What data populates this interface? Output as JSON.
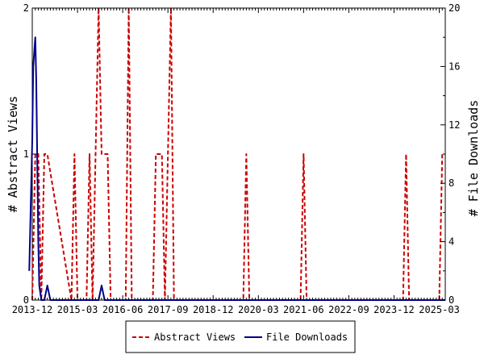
{
  "chart_data": {
    "type": "line",
    "x_tick_labels": [
      "2013-12",
      "2015-03",
      "2016-06",
      "2017-09",
      "2018-12",
      "2020-03",
      "2021-06",
      "2022-09",
      "2023-12",
      "2025-03"
    ],
    "x_range": [
      "2013-12",
      "2025-05"
    ],
    "left_axis": {
      "label": "# Abstract Views",
      "ylim": [
        0,
        2
      ],
      "ticks": [
        "0",
        "1",
        "2"
      ]
    },
    "right_axis": {
      "label": "# File Downloads",
      "ylim": [
        0,
        20
      ],
      "ticks": [
        "0",
        "4",
        "8",
        "12",
        "16",
        "20"
      ]
    },
    "grid": false,
    "legend_placement": "bottom-center",
    "series": [
      {
        "name": "Abstract Views",
        "axis": "left",
        "style": "dashed",
        "color": "#cc0000",
        "x": [
          "2013-12",
          "2014-01",
          "2014-02",
          "2014-03",
          "2014-04",
          "2014-05",
          "2015-01",
          "2015-02",
          "2015-03",
          "2015-06",
          "2015-07",
          "2015-08",
          "2015-09",
          "2015-10",
          "2015-11",
          "2015-12",
          "2016-01",
          "2016-02",
          "2016-03",
          "2016-04",
          "2016-05",
          "2016-06",
          "2016-07",
          "2016-08",
          "2016-09",
          "2016-10",
          "2016-11",
          "2016-12",
          "2017-01",
          "2017-02",
          "2017-03",
          "2017-04",
          "2017-05",
          "2017-06",
          "2017-07",
          "2017-08",
          "2017-09",
          "2017-10",
          "2017-11",
          "2017-12",
          "2019-10",
          "2019-11",
          "2019-12",
          "2021-05",
          "2021-06",
          "2021-07",
          "2024-03",
          "2024-04",
          "2024-05",
          "2025-03",
          "2025-04"
        ],
        "values": [
          0,
          1,
          1,
          0,
          1,
          1,
          0,
          1,
          0,
          0,
          1,
          0,
          1,
          2,
          1,
          1,
          1,
          0,
          0,
          0,
          0,
          0,
          0,
          2,
          0,
          0,
          0,
          0,
          0,
          0,
          0,
          0,
          1,
          1,
          1,
          0,
          1,
          2,
          0,
          0,
          0,
          1,
          0,
          0,
          1,
          0,
          0,
          1,
          0,
          0,
          1
        ]
      },
      {
        "name": "File Downloads",
        "axis": "right",
        "style": "solid",
        "color": "#00008b",
        "x": [
          "2013-11",
          "2013-12",
          "2013-12",
          "2014-01",
          "2014-01",
          "2014-02",
          "2014-02",
          "2014-03",
          "2014-04",
          "2014-05",
          "2014-06",
          "2015-10",
          "2015-11",
          "2015-12",
          "2016-01",
          "2025-05"
        ],
        "values": [
          2,
          11,
          16,
          18,
          15,
          4,
          1,
          0,
          0,
          1,
          0,
          0,
          1,
          0,
          0,
          0
        ]
      }
    ]
  }
}
